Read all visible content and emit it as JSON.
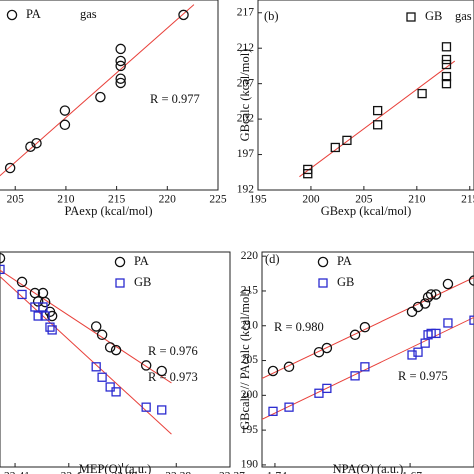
{
  "chart_data": [
    {
      "type": "scatter",
      "x_label": "PAexp (kcal/mol)",
      "annotations": [
        "R = 0.977"
      ],
      "legend_note": "gas",
      "xlim": [
        203.4,
        225
      ],
      "xticks": [
        205,
        210,
        215,
        220,
        225
      ],
      "ylim": [
        196,
        222.8
      ],
      "x": [
        204.5,
        206.5,
        207.1,
        209.9,
        209.9,
        213.4,
        215.4,
        215.4,
        215.4,
        215.4,
        215.4,
        221.6
      ],
      "series": [
        {
          "name": "PA",
          "marker": "circle",
          "color": "#111111",
          "values": [
            199.1,
            202.1,
            202.6,
            205.2,
            207.2,
            209.1,
            211.1,
            211.7,
            213.5,
            214.2,
            215.9,
            220.7
          ]
        }
      ],
      "fit_color": "#e8403a"
    },
    {
      "type": "scatter",
      "label": "(b)",
      "x_label": "GBexp (kcal/mol)",
      "y_label": "GBcalc (kcal/mol)",
      "legend_note": "gas",
      "xlim": [
        195,
        215.4
      ],
      "xticks": [
        195,
        200,
        205,
        210,
        215
      ],
      "ylim": [
        192,
        218.8
      ],
      "yticks": [
        192,
        197,
        202,
        207,
        212,
        217
      ],
      "x": [
        199.7,
        199.7,
        202.3,
        203.4,
        206.3,
        206.3,
        210.5,
        212.8,
        212.8,
        212.8,
        212.8,
        212.8
      ],
      "series": [
        {
          "name": "GB",
          "marker": "square",
          "color": "#111111",
          "values": [
            194.9,
            194.3,
            198.0,
            199.0,
            203.2,
            201.2,
            205.6,
            212.2,
            210.4,
            209.7,
            208.0,
            207.0
          ]
        }
      ],
      "fit_color": "#e8403a"
    },
    {
      "type": "scatter",
      "x_label": "MEP(O) (a.u.)",
      "annotations": [
        "R = 0.976",
        "R = 0.973"
      ],
      "xlim": [
        -22.4128,
        -22.37
      ],
      "xticks": [
        -22.41,
        -22.4,
        -22.39,
        -22.38,
        -22.37
      ],
      "ylim": [
        189.7,
        220.6
      ],
      "x": [
        -22.4128,
        -22.4087,
        -22.4063,
        -22.4057,
        -22.4048,
        -22.4044,
        -22.4035,
        -22.4031,
        -22.3949,
        -22.3938,
        -22.3923,
        -22.3912,
        -22.3856,
        -22.3827
      ],
      "series": [
        {
          "name": "PA",
          "marker": "circle",
          "color": "#111111",
          "values": [
            219.7,
            216.3,
            214.7,
            213.5,
            214.7,
            213.4,
            212.0,
            211.4,
            209.9,
            208.7,
            206.9,
            206.5,
            204.3,
            203.5
          ]
        },
        {
          "name": "GB",
          "marker": "square",
          "color": "#2b2bd0",
          "values": [
            218.1,
            214.5,
            212.7,
            211.4,
            212.7,
            211.4,
            209.8,
            209.4,
            204.1,
            202.6,
            201.2,
            200.5,
            198.3,
            197.9
          ]
        }
      ],
      "fit_color": "#e8403a"
    },
    {
      "type": "scatter",
      "label": "(d)",
      "x_label": "NPA(O) (a.u.)",
      "y_label": "GBcalc // PAcalc (kcal/mol)",
      "annotations": [
        "R = 0.980",
        "R = 0.975"
      ],
      "xlim": [
        -1.7467,
        -1.6369
      ],
      "xticks": [
        -1.74,
        -1.67
      ],
      "ylim": [
        189.7,
        220.6
      ],
      "yticks": [
        190,
        195,
        200,
        205,
        210,
        215,
        220
      ],
      "x": [
        -1.741,
        -1.7327,
        -1.7172,
        -1.7131,
        -1.6985,
        -1.6934,
        -1.669,
        -1.6659,
        -1.6622,
        -1.6607,
        -1.6591,
        -1.6566,
        -1.6504,
        -1.6369
      ],
      "series": [
        {
          "name": "PA",
          "marker": "circle",
          "color": "#111111",
          "values": [
            203.5,
            204.1,
            206.2,
            206.8,
            208.7,
            209.8,
            212.0,
            212.7,
            213.2,
            214.1,
            214.5,
            214.5,
            216.0,
            216.5
          ]
        },
        {
          "name": "GB",
          "marker": "square",
          "color": "#2b2bd0",
          "values": [
            197.7,
            198.3,
            200.3,
            201.0,
            202.8,
            204.1,
            205.8,
            206.2,
            207.5,
            208.7,
            208.9,
            208.9,
            210.4,
            210.8
          ]
        }
      ],
      "fit_color": "#e8403a"
    }
  ]
}
